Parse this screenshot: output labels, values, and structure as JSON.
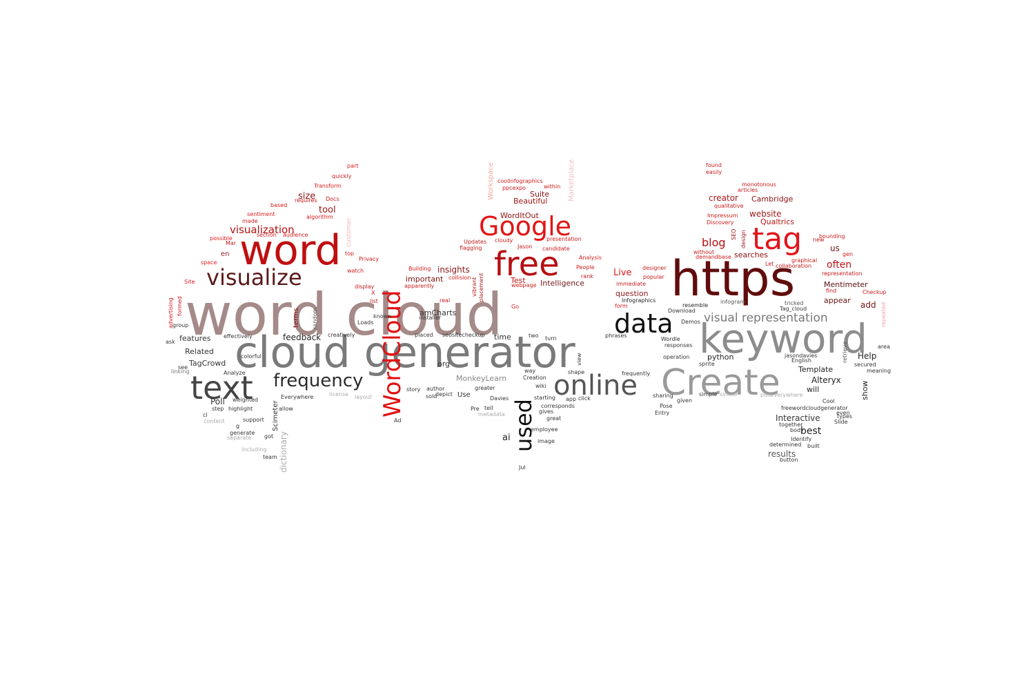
{
  "word_cloud": {
    "words": [
      {
        "text": "word cloud",
        "color": "#A48A88"
      },
      {
        "text": "cloud generator",
        "color": "#7A7A7A"
      },
      {
        "text": "https",
        "color": "#610C0C"
      },
      {
        "text": "word",
        "color": "#C00E10"
      },
      {
        "text": "keyword",
        "color": "#8C8C8C"
      },
      {
        "text": "Create",
        "color": "#9A9A9A"
      },
      {
        "text": "free",
        "color": "#B60E12"
      },
      {
        "text": "Google",
        "color": "#E11616"
      },
      {
        "text": "tag",
        "color": "#E2131B"
      },
      {
        "text": "text",
        "color": "#454545"
      },
      {
        "text": "online",
        "color": "#555555"
      },
      {
        "text": "data",
        "color": "#111111"
      },
      {
        "text": "visualize",
        "color": "#5B1A1A"
      },
      {
        "text": "WordCloud",
        "color": "#E01010"
      },
      {
        "text": "frequency",
        "color": "#2B2B2B"
      },
      {
        "text": "used",
        "color": "#111111"
      },
      {
        "text": "visual representation",
        "color": "#777777"
      },
      {
        "text": "visualization",
        "color": "#B71010"
      },
      {
        "text": "blog",
        "color": "#B40D0D"
      },
      {
        "text": "size",
        "color": "#8E1414"
      },
      {
        "text": "tool",
        "color": "#941414"
      },
      {
        "text": "insights",
        "color": "#8B1515"
      },
      {
        "text": "Live",
        "color": "#D91A1A"
      },
      {
        "text": "often",
        "color": "#C0101A"
      },
      {
        "text": "website",
        "color": "#9C1818"
      },
      {
        "text": "creator",
        "color": "#B01515"
      },
      {
        "text": "Cambridge",
        "color": "#8A1010"
      },
      {
        "text": "Qualtrics",
        "color": "#BB1414"
      },
      {
        "text": "searches",
        "color": "#8B1010"
      },
      {
        "text": "us",
        "color": "#7A1313"
      },
      {
        "text": "Intelligence",
        "color": "#701818"
      },
      {
        "text": "important",
        "color": "#7A1010"
      },
      {
        "text": "Test",
        "color": "#C01515"
      },
      {
        "text": "Beautiful",
        "color": "#9E1212"
      },
      {
        "text": "Suite",
        "color": "#8A1111"
      },
      {
        "text": "WordItOut",
        "color": "#901414"
      },
      {
        "text": "question",
        "color": "#8E1A1A"
      },
      {
        "text": "Mentimeter",
        "color": "#5A1010"
      },
      {
        "text": "appear",
        "color": "#6A1212"
      },
      {
        "text": "add",
        "color": "#751212"
      },
      {
        "text": "feedback",
        "color": "#222222"
      },
      {
        "text": "features",
        "color": "#333333"
      },
      {
        "text": "Related",
        "color": "#333333"
      },
      {
        "text": "TagCrowd",
        "color": "#333333"
      },
      {
        "text": "Poll",
        "color": "#333333"
      },
      {
        "text": "amCharts",
        "color": "#333333"
      },
      {
        "text": "org",
        "color": "#333333"
      },
      {
        "text": "time",
        "color": "#333333"
      },
      {
        "text": "Use",
        "color": "#333333"
      },
      {
        "text": "MonkeyLearn",
        "color": "#888888"
      },
      {
        "text": "python",
        "color": "#222222"
      },
      {
        "text": "Help",
        "color": "#222222"
      },
      {
        "text": "Template",
        "color": "#222222"
      },
      {
        "text": "Alteryx",
        "color": "#222222"
      },
      {
        "text": "will",
        "color": "#222222"
      },
      {
        "text": "show",
        "color": "#222222"
      },
      {
        "text": "best",
        "color": "#222222"
      },
      {
        "text": "Interactive",
        "color": "#333333"
      },
      {
        "text": "results",
        "color": "#555555"
      },
      {
        "text": "ai",
        "color": "#222222"
      },
      {
        "text": "Scimeter",
        "color": "#333333"
      },
      {
        "text": "dictionary",
        "color": "#AAAAAA"
      },
      {
        "text": "Workspace",
        "color": "#F0A6A6"
      },
      {
        "text": "Marketplace",
        "color": "#F4C0C0"
      },
      {
        "text": "customer",
        "color": "#F4B6B6"
      },
      {
        "text": "advertising",
        "color": "#D21A1A"
      },
      {
        "text": "formed",
        "color": "#C51A1A"
      },
      {
        "text": "terms",
        "color": "#8E1414"
      },
      {
        "text": "random",
        "color": "#555555"
      },
      {
        "text": "view",
        "color": "#333333"
      },
      {
        "text": "vibrant",
        "color": "#B41A1A"
      },
      {
        "text": "placement",
        "color": "#A01A1A"
      },
      {
        "text": "SEO",
        "color": "#A01A1A"
      },
      {
        "text": "design",
        "color": "#A01A1A"
      },
      {
        "text": "retrieve",
        "color": "#555555"
      },
      {
        "text": "repeated",
        "color": "#F0A6A6"
      },
      {
        "text": "part",
        "color": "#E01A1A"
      },
      {
        "text": "quickly",
        "color": "#D01A1A"
      },
      {
        "text": "Transform",
        "color": "#E01A1A"
      },
      {
        "text": "Docs",
        "color": "#D01A1A"
      },
      {
        "text": "requires",
        "color": "#C81A1A"
      },
      {
        "text": "based",
        "color": "#E01A1A"
      },
      {
        "text": "algorithm",
        "color": "#D01A1A"
      },
      {
        "text": "sentiment",
        "color": "#E01A1A"
      },
      {
        "text": "made",
        "color": "#D01A1A"
      },
      {
        "text": "section",
        "color": "#D01A1A"
      },
      {
        "text": "audience",
        "color": "#D01A1A"
      },
      {
        "text": "possible",
        "color": "#E01A1A"
      },
      {
        "text": "Mar",
        "color": "#C01A1A"
      },
      {
        "text": "en",
        "color": "#9A1818"
      },
      {
        "text": "space",
        "color": "#E01A1A"
      },
      {
        "text": "Site",
        "color": "#E01A1A"
      },
      {
        "text": "top",
        "color": "#D01A1A"
      },
      {
        "text": "Privacy",
        "color": "#C81A1A"
      },
      {
        "text": "watch",
        "color": "#D01A1A"
      },
      {
        "text": "display",
        "color": "#C01A1A"
      },
      {
        "text": "X",
        "color": "#C01A1A"
      },
      {
        "text": "list",
        "color": "#C01A1A"
      },
      {
        "text": "Building",
        "color": "#D01A1A"
      },
      {
        "text": "apparently",
        "color": "#C81A1A"
      },
      {
        "text": "collision",
        "color": "#D01A1A"
      },
      {
        "text": "real",
        "color": "#C01A1A"
      },
      {
        "text": "Updates",
        "color": "#C01A1A"
      },
      {
        "text": "flagging",
        "color": "#C81A1A"
      },
      {
        "text": "cloudy",
        "color": "#C81A1A"
      },
      {
        "text": "Jason",
        "color": "#C01A1A"
      },
      {
        "text": "coolinfographics",
        "color": "#D01A1A"
      },
      {
        "text": "ppcexpo",
        "color": "#D01A1A"
      },
      {
        "text": "within",
        "color": "#D01A1A"
      },
      {
        "text": "candidate",
        "color": "#C81A1A"
      },
      {
        "text": "presentation",
        "color": "#D01A1A"
      },
      {
        "text": "Analysis",
        "color": "#D01A1A"
      },
      {
        "text": "People",
        "color": "#D01A1A"
      },
      {
        "text": "rank",
        "color": "#C81A1A"
      },
      {
        "text": "immediate",
        "color": "#C81A1A"
      },
      {
        "text": "webpage",
        "color": "#C81A1A"
      },
      {
        "text": "Go",
        "color": "#E01A1A"
      },
      {
        "text": "form",
        "color": "#D01A1A"
      },
      {
        "text": "Infographics",
        "color": "#222222"
      },
      {
        "text": "designer",
        "color": "#C81A1A"
      },
      {
        "text": "popular",
        "color": "#C81A1A"
      },
      {
        "text": "resemble",
        "color": "#222222"
      },
      {
        "text": "Download",
        "color": "#333333"
      },
      {
        "text": "found",
        "color": "#D01A1A"
      },
      {
        "text": "easily",
        "color": "#C81A1A"
      },
      {
        "text": "monotonous",
        "color": "#C81A1A"
      },
      {
        "text": "articles",
        "color": "#C81A1A"
      },
      {
        "text": "qualitative",
        "color": "#C81A1A"
      },
      {
        "text": "Impressum",
        "color": "#C81A1A"
      },
      {
        "text": "Discovery",
        "color": "#C81A1A"
      },
      {
        "text": "without",
        "color": "#C81A1A"
      },
      {
        "text": "demandbase",
        "color": "#C81A1A"
      },
      {
        "text": "Let",
        "color": "#C81A1A"
      },
      {
        "text": "collaboration",
        "color": "#C01A1A"
      },
      {
        "text": "graphical",
        "color": "#C81A1A"
      },
      {
        "text": "new",
        "color": "#C01A1A"
      },
      {
        "text": "bounding",
        "color": "#C81A1A"
      },
      {
        "text": "representation",
        "color": "#C81A1A"
      },
      {
        "text": "find",
        "color": "#C81A1A"
      },
      {
        "text": "gen",
        "color": "#C81A1A"
      },
      {
        "text": "Checkup",
        "color": "#C81A1A"
      },
      {
        "text": "infogram",
        "color": "#555555"
      },
      {
        "text": "tricked",
        "color": "#555555"
      },
      {
        "text": "Tag_cloud",
        "color": "#333333"
      },
      {
        "text": "area",
        "color": "#333333"
      },
      {
        "text": "jasondavies",
        "color": "#333333"
      },
      {
        "text": "English",
        "color": "#333333"
      },
      {
        "text": "secured",
        "color": "#333333"
      },
      {
        "text": "meaning",
        "color": "#333333"
      },
      {
        "text": "polleverywhere",
        "color": "#AAAAAA"
      },
      {
        "text": "Cool",
        "color": "#333333"
      },
      {
        "text": "freewordcloudgenerator",
        "color": "#333333"
      },
      {
        "text": "types",
        "color": "#333333"
      },
      {
        "text": "Slide",
        "color": "#333333"
      },
      {
        "text": "together",
        "color": "#333333"
      },
      {
        "text": "body",
        "color": "#333333"
      },
      {
        "text": "Identify",
        "color": "#333333"
      },
      {
        "text": "determined",
        "color": "#333333"
      },
      {
        "text": "built",
        "color": "#333333"
      },
      {
        "text": "button",
        "color": "#333333"
      },
      {
        "text": "even",
        "color": "#333333"
      },
      {
        "text": "Wordle",
        "color": "#333333"
      },
      {
        "text": "responses",
        "color": "#333333"
      },
      {
        "text": "operation",
        "color": "#333333"
      },
      {
        "text": "sprite",
        "color": "#333333"
      },
      {
        "text": "Demos",
        "color": "#333333"
      },
      {
        "text": "sharing",
        "color": "#333333"
      },
      {
        "text": "given",
        "color": "#333333"
      },
      {
        "text": "Pose",
        "color": "#333333"
      },
      {
        "text": "Entry",
        "color": "#333333"
      },
      {
        "text": "simple",
        "color": "#333333"
      },
      {
        "text": "similar",
        "color": "#AAAAAA"
      },
      {
        "text": "frequently",
        "color": "#333333"
      },
      {
        "text": "phrases",
        "color": "#333333"
      },
      {
        "text": "shape",
        "color": "#333333"
      },
      {
        "text": "click",
        "color": "#333333"
      },
      {
        "text": "app",
        "color": "#333333"
      },
      {
        "text": "corresponds",
        "color": "#333333"
      },
      {
        "text": "starting",
        "color": "#333333"
      },
      {
        "text": "gives",
        "color": "#333333"
      },
      {
        "text": "great",
        "color": "#333333"
      },
      {
        "text": "employee",
        "color": "#333333"
      },
      {
        "text": "image",
        "color": "#333333"
      },
      {
        "text": "two",
        "color": "#333333"
      },
      {
        "text": "turn",
        "color": "#333333"
      },
      {
        "text": "way",
        "color": "#333333"
      },
      {
        "text": "wiki",
        "color": "#333333"
      },
      {
        "text": "Creation",
        "color": "#333333"
      },
      {
        "text": "greater",
        "color": "#333333"
      },
      {
        "text": "Davies",
        "color": "#333333"
      },
      {
        "text": "Pre",
        "color": "#333333"
      },
      {
        "text": "tell",
        "color": "#333333"
      },
      {
        "text": "metadata",
        "color": "#AAAAAA"
      },
      {
        "text": "depict",
        "color": "#333333"
      },
      {
        "text": "author",
        "color": "#333333"
      },
      {
        "text": "story",
        "color": "#333333"
      },
      {
        "text": "sold",
        "color": "#333333"
      },
      {
        "text": "Ad",
        "color": "#333333"
      },
      {
        "text": "Jul",
        "color": "#333333"
      },
      {
        "text": "installer",
        "color": "#333333"
      },
      {
        "text": "placed",
        "color": "#333333"
      },
      {
        "text": "seositecheckup",
        "color": "#333333"
      },
      {
        "text": "known",
        "color": "#333333"
      },
      {
        "text": "Loads",
        "color": "#333333"
      },
      {
        "text": "creatively",
        "color": "#333333"
      },
      {
        "text": "effectively",
        "color": "#333333"
      },
      {
        "text": "colorful",
        "color": "#333333"
      },
      {
        "text": "Analyze",
        "color": "#333333"
      },
      {
        "text": "group",
        "color": "#333333"
      },
      {
        "text": "ask",
        "color": "#333333"
      },
      {
        "text": "see",
        "color": "#333333"
      },
      {
        "text": "linking",
        "color": "#777777"
      },
      {
        "text": "weighted",
        "color": "#333333"
      },
      {
        "text": "step",
        "color": "#333333"
      },
      {
        "text": "highlight",
        "color": "#333333"
      },
      {
        "text": "cl",
        "color": "#333333"
      },
      {
        "text": "g",
        "color": "#333333"
      },
      {
        "text": "content",
        "color": "#AAAAAA"
      },
      {
        "text": "generate",
        "color": "#333333"
      },
      {
        "text": "separate",
        "color": "#AAAAAA"
      },
      {
        "text": "support",
        "color": "#333333"
      },
      {
        "text": "got",
        "color": "#333333"
      },
      {
        "text": "Everywhere",
        "color": "#333333"
      },
      {
        "text": "allow",
        "color": "#333333"
      },
      {
        "text": "including",
        "color": "#AAAAAA"
      },
      {
        "text": "team",
        "color": "#333333"
      },
      {
        "text": "license",
        "color": "#AAAAAA"
      },
      {
        "text": "layout",
        "color": "#AAAAAA"
      }
    ]
  }
}
